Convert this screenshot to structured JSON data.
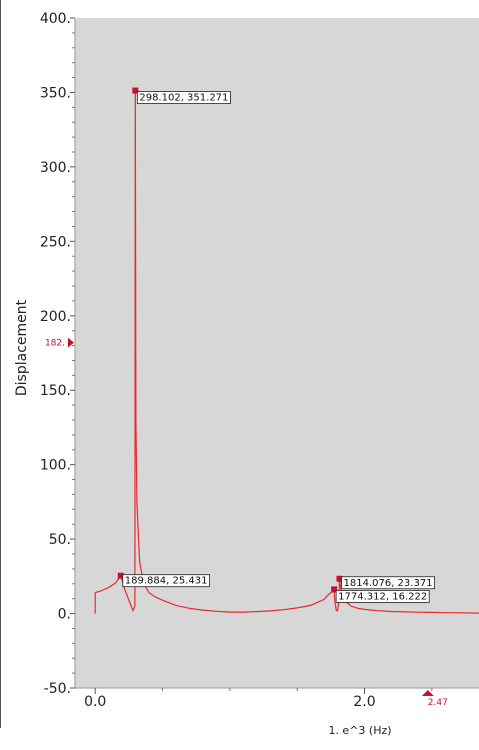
{
  "chart_data": {
    "type": "line",
    "title": "",
    "ylabel": "Displacement",
    "xunit_label": "1. e^3 (Hz)",
    "xlim": [
      -0.15,
      2.85
    ],
    "ylim": [
      -50,
      400
    ],
    "x_ticks": [
      {
        "value": 0.0,
        "label": "0.0"
      },
      {
        "value": 2.0,
        "label": "2.0"
      }
    ],
    "y_ticks": [
      {
        "value": 400,
        "label": "400."
      },
      {
        "value": 350,
        "label": "350."
      },
      {
        "value": 300,
        "label": "300."
      },
      {
        "value": 250,
        "label": "250."
      },
      {
        "value": 200,
        "label": "200."
      },
      {
        "value": 150,
        "label": "150."
      },
      {
        "value": 100,
        "label": "100."
      },
      {
        "value": 50,
        "label": "50."
      },
      {
        "value": 0,
        "label": "0."
      },
      {
        "value": -50,
        "label": "-50."
      }
    ],
    "grid": false,
    "background": "#d7d7d7",
    "series_color": "#e8292f",
    "marker_color": "#c8102e",
    "series": [
      {
        "x": [
          0.0,
          0.0,
          0.05,
          0.1,
          0.15,
          0.189884,
          0.22,
          0.25,
          0.28,
          0.295,
          0.298102,
          0.302,
          0.31,
          0.33,
          0.36,
          0.4,
          0.45,
          0.5,
          0.6,
          0.7,
          0.8,
          0.9,
          1.0,
          1.1,
          1.2,
          1.3,
          1.4,
          1.5,
          1.6,
          1.7,
          1.74,
          1.77,
          1.774312,
          1.78,
          1.79,
          1.8,
          1.81,
          1.814076,
          1.83,
          1.86,
          1.9,
          1.95,
          2.0,
          2.1,
          2.2,
          2.3,
          2.4,
          2.5,
          2.6,
          2.7,
          2.85
        ],
        "y": [
          0.0,
          14.0,
          15.5,
          17.5,
          20.5,
          25.431,
          16.0,
          9.0,
          2.0,
          5.0,
          351.271,
          130.0,
          75.0,
          35.0,
          20.0,
          14.0,
          11.0,
          9.0,
          5.5,
          3.5,
          2.3,
          1.5,
          1.0,
          1.0,
          1.3,
          1.8,
          2.6,
          3.8,
          5.5,
          9.5,
          13.5,
          15.0,
          16.222,
          8.0,
          2.0,
          2.0,
          9.0,
          23.371,
          13.0,
          8.0,
          5.0,
          3.5,
          2.8,
          1.9,
          1.4,
          1.1,
          0.9,
          0.8,
          0.6,
          0.5,
          0.3
        ]
      }
    ],
    "annotations": [
      {
        "x": 298.102,
        "y": 351.271,
        "label": "298.102, 351.271"
      },
      {
        "x": 189.884,
        "y": 25.431,
        "label": "189.884, 25.431"
      },
      {
        "x": 1814.076,
        "y": 23.371,
        "label": "1814.076, 23.371"
      },
      {
        "x": 1774.312,
        "y": 16.222,
        "label": "1774.312, 16.222"
      }
    ],
    "y_cursor": {
      "value": 182,
      "label": "182."
    },
    "x_cursor": {
      "value": 2.47,
      "label": "2.47"
    }
  }
}
